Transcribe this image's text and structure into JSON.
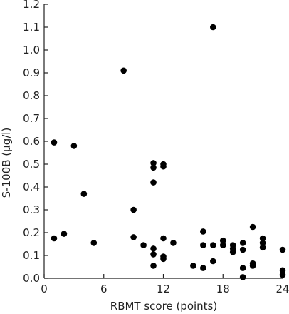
{
  "chart_data": {
    "type": "scatter",
    "title": "",
    "xlabel": "RBMT score (points)",
    "ylabel": "S-100B (µg/l)",
    "xlim": [
      0,
      24
    ],
    "ylim": [
      0,
      1.2
    ],
    "xticks": [
      0,
      6,
      12,
      18,
      24
    ],
    "yticks": [
      0.0,
      0.1,
      0.2,
      0.3,
      0.4,
      0.5,
      0.6,
      0.7,
      0.8,
      0.9,
      1.0,
      1.1,
      1.2
    ],
    "xtick_labels": [
      "0",
      "6",
      "12",
      "18",
      "24"
    ],
    "ytick_labels": [
      "0.0",
      "0.1",
      "0.2",
      "0.3",
      "0.4",
      "0.5",
      "0.6",
      "0.7",
      "0.8",
      "0.9",
      "1.0",
      "1.1",
      "1.2"
    ],
    "grid": false,
    "marker_color": "#000000",
    "points": [
      {
        "x": 1,
        "y": 0.595
      },
      {
        "x": 1,
        "y": 0.175
      },
      {
        "x": 2,
        "y": 0.195
      },
      {
        "x": 3,
        "y": 0.58
      },
      {
        "x": 4,
        "y": 0.37
      },
      {
        "x": 5,
        "y": 0.155
      },
      {
        "x": 8,
        "y": 0.91
      },
      {
        "x": 9,
        "y": 0.3
      },
      {
        "x": 9,
        "y": 0.18
      },
      {
        "x": 10,
        "y": 0.145
      },
      {
        "x": 11,
        "y": 0.505
      },
      {
        "x": 11,
        "y": 0.485
      },
      {
        "x": 11,
        "y": 0.42
      },
      {
        "x": 11,
        "y": 0.13
      },
      {
        "x": 11,
        "y": 0.105
      },
      {
        "x": 11,
        "y": 0.055
      },
      {
        "x": 12,
        "y": 0.5
      },
      {
        "x": 12,
        "y": 0.49
      },
      {
        "x": 12,
        "y": 0.175
      },
      {
        "x": 12,
        "y": 0.095
      },
      {
        "x": 12,
        "y": 0.085
      },
      {
        "x": 13,
        "y": 0.155
      },
      {
        "x": 15,
        "y": 0.055
      },
      {
        "x": 16,
        "y": 0.205
      },
      {
        "x": 16,
        "y": 0.145
      },
      {
        "x": 16,
        "y": 0.045
      },
      {
        "x": 17,
        "y": 1.1
      },
      {
        "x": 17,
        "y": 0.145
      },
      {
        "x": 17,
        "y": 0.075
      },
      {
        "x": 18,
        "y": 0.165
      },
      {
        "x": 18,
        "y": 0.145
      },
      {
        "x": 19,
        "y": 0.145
      },
      {
        "x": 19,
        "y": 0.13
      },
      {
        "x": 19,
        "y": 0.115
      },
      {
        "x": 20,
        "y": 0.155
      },
      {
        "x": 20,
        "y": 0.125
      },
      {
        "x": 20,
        "y": 0.045
      },
      {
        "x": 20,
        "y": 0.005
      },
      {
        "x": 21,
        "y": 0.225
      },
      {
        "x": 21,
        "y": 0.065
      },
      {
        "x": 21,
        "y": 0.055
      },
      {
        "x": 22,
        "y": 0.175
      },
      {
        "x": 22,
        "y": 0.155
      },
      {
        "x": 22,
        "y": 0.135
      },
      {
        "x": 24,
        "y": 0.125
      },
      {
        "x": 24,
        "y": 0.035
      },
      {
        "x": 24,
        "y": 0.015
      }
    ]
  }
}
